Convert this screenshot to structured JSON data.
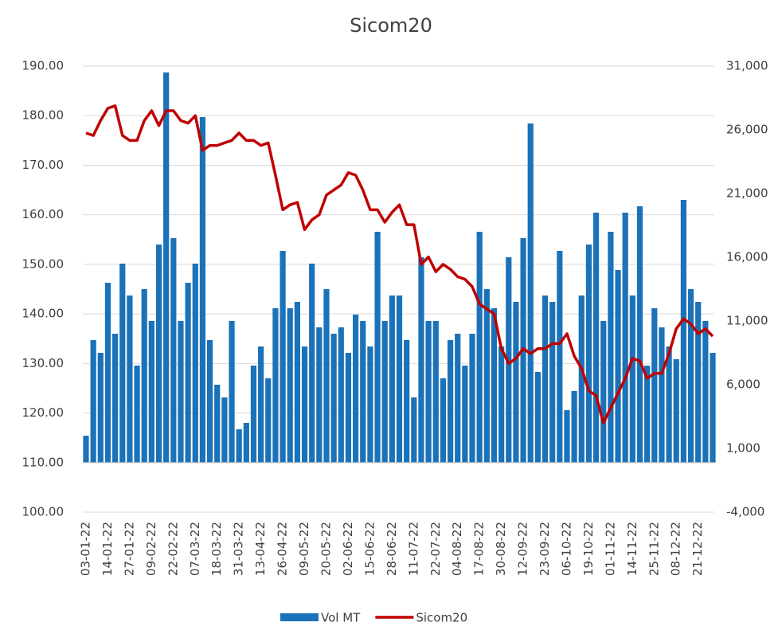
{
  "chart_data": {
    "type": "bar_line",
    "title": "Sicom20",
    "categories": [
      "03-01-22",
      null,
      null,
      "14-01-22",
      null,
      null,
      "27-01-22",
      null,
      null,
      "09-02-22",
      null,
      null,
      "22-02-22",
      null,
      null,
      "07-03-22",
      null,
      null,
      "18-03-22",
      null,
      null,
      "31-03-22",
      null,
      null,
      "13-04-22",
      null,
      null,
      "26-04-22",
      null,
      null,
      "09-05-22",
      null,
      null,
      "20-05-22",
      null,
      null,
      "02-06-22",
      null,
      null,
      "15-06-22",
      null,
      null,
      "28-06-22",
      null,
      null,
      "11-07-22",
      null,
      null,
      "22-07-22",
      null,
      null,
      "04-08-22",
      null,
      null,
      "17-08-22",
      null,
      null,
      "30-08-22",
      null,
      null,
      "12-09-22",
      null,
      null,
      "23-09-22",
      null,
      null,
      "06-10-22",
      null,
      null,
      "19-10-22",
      null,
      null,
      "01-11-22",
      null,
      null,
      "14-11-22",
      null,
      null,
      "25-11-22",
      null,
      null,
      "08-12-22",
      null,
      null,
      "21-12-22",
      null,
      null
    ],
    "series": [
      {
        "name": "Vol MT",
        "color": "#1b72b8",
        "axis": "y2",
        "values": [
          2000,
          9500,
          8500,
          14000,
          10000,
          15500,
          13000,
          7500,
          13500,
          11000,
          17000,
          30500,
          17500,
          11000,
          14000,
          15500,
          27000,
          9500,
          6000,
          5000,
          11000,
          2500,
          3000,
          7500,
          9000,
          6500,
          12000,
          16500,
          12000,
          12500,
          9000,
          15500,
          10500,
          13500,
          10000,
          10500,
          8500,
          11500,
          11000,
          9000,
          18000,
          11000,
          13000,
          13000,
          9500,
          5000,
          16000,
          11000,
          11000,
          6500,
          9500,
          10000,
          7500,
          10000,
          18000,
          13500,
          12000,
          9000,
          16000,
          12500,
          17500,
          26500,
          7000,
          13000,
          12500,
          16500,
          4000,
          5500,
          13000,
          17000,
          19500,
          11000,
          18000,
          15000,
          19500,
          13000,
          20000,
          7500,
          12000,
          10500,
          9000,
          8000,
          20500,
          13500,
          12500,
          11000,
          8500
        ]
      },
      {
        "name": "Sicom20",
        "color": "#c00000",
        "values": [
          176.5,
          176,
          179,
          181.5,
          182,
          176,
          175,
          175,
          179,
          181,
          178,
          181,
          181,
          179,
          178.5,
          180,
          173,
          174,
          174,
          174.5,
          175,
          176.5,
          175,
          175,
          174,
          174.5,
          168,
          161,
          162,
          162.5,
          157,
          159,
          160,
          164,
          165,
          166,
          168.5,
          168,
          165,
          161,
          161,
          158.5,
          160.5,
          162,
          158,
          158,
          150,
          151.5,
          148.5,
          150,
          149,
          147.5,
          147,
          145.5,
          142,
          141,
          140,
          133,
          130,
          131,
          133,
          132,
          133,
          133,
          134,
          134,
          136,
          131.5,
          129,
          124.5,
          123.5,
          118,
          121,
          124,
          127,
          131,
          130.5,
          127,
          128,
          128,
          132,
          137,
          139,
          138,
          136,
          137,
          135.5
        ]
      }
    ],
    "ylim": [
      100,
      190
    ],
    "yticks": [
      {
        "value": 100,
        "label": "100.00"
      },
      {
        "value": 110,
        "label": "110.00"
      },
      {
        "value": 120,
        "label": "120.00"
      },
      {
        "value": 130,
        "label": "130.00"
      },
      {
        "value": 140,
        "label": "140.00"
      },
      {
        "value": 150,
        "label": "150.00"
      },
      {
        "value": 160,
        "label": "160.00"
      },
      {
        "value": 170,
        "label": "170.00"
      },
      {
        "value": 180,
        "label": "180.00"
      },
      {
        "value": 190,
        "label": "190.00"
      }
    ],
    "y2lim": [
      -4000,
      31000
    ],
    "y2ticks": [
      {
        "value": -4000,
        "label": "-4,000"
      },
      {
        "value": 1000,
        "label": "1,000"
      },
      {
        "value": 6000,
        "label": "6,000"
      },
      {
        "value": 11000,
        "label": "11,000"
      },
      {
        "value": 16000,
        "label": "16,000"
      },
      {
        "value": 21000,
        "label": "21,000"
      },
      {
        "value": 26000,
        "label": "26,000"
      },
      {
        "value": 31000,
        "label": "31,000"
      }
    ],
    "grid": true
  }
}
